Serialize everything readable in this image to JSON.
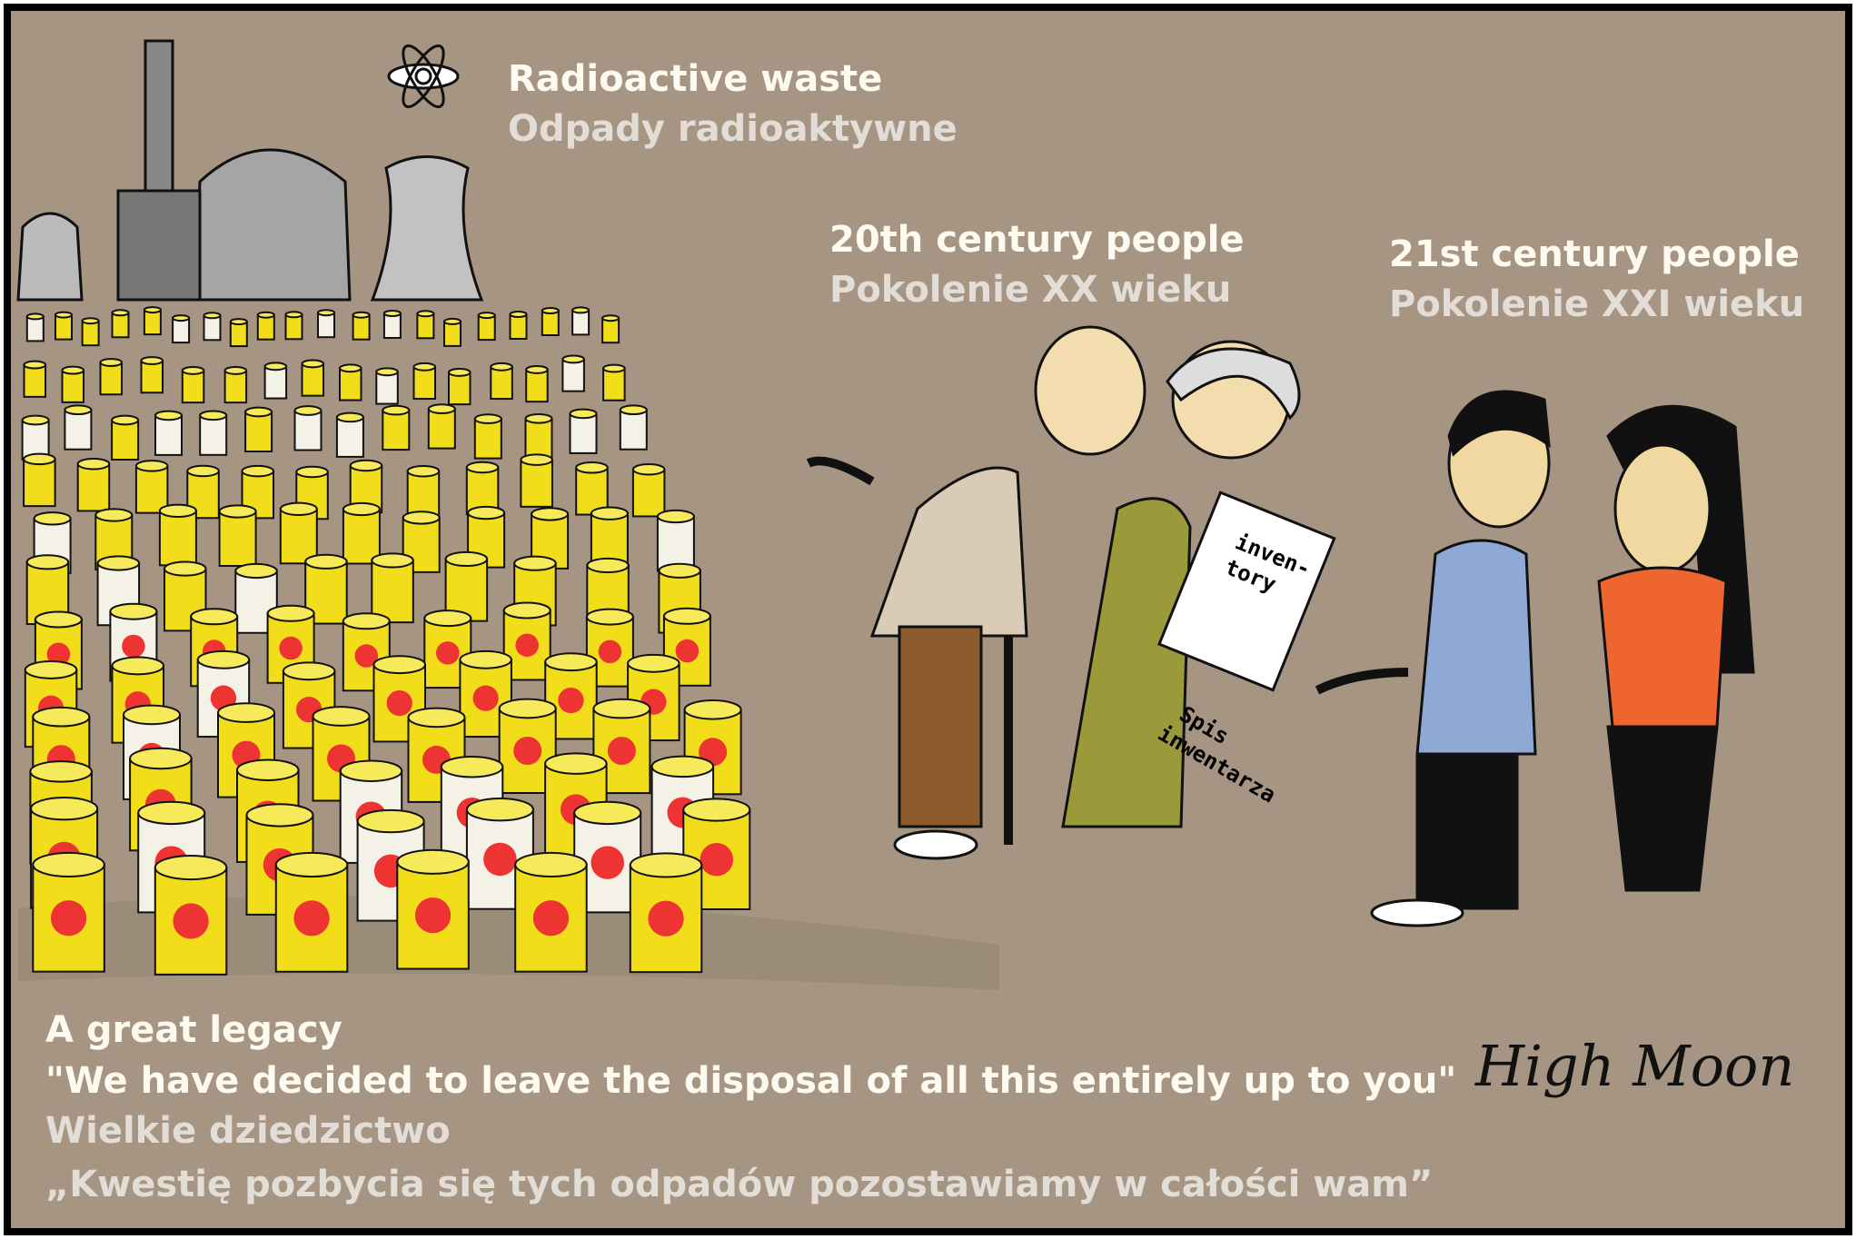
{
  "header": {
    "title": "Radioactive waste",
    "title_pl": "Odpady radioaktywne"
  },
  "groups": [
    {
      "label": "20th century people",
      "label_pl": "Pokolenie XX wieku"
    },
    {
      "label": "21st century people",
      "label_pl": "Pokolenie XXI wieku"
    }
  ],
  "book": {
    "lines": [
      "inven-",
      "tory"
    ],
    "caption_lines": [
      "Spis",
      "inwentarza"
    ]
  },
  "caption": {
    "title": "A great legacy",
    "quote": "\"We have decided to leave the disposal of all this entirely up to you\"",
    "title_pl": "Wielkie dziedzictwo",
    "quote_pl": "„Kwestię pozbycia się tych odpadów pozostawiamy w całości wam”"
  },
  "signature": "High Moon"
}
